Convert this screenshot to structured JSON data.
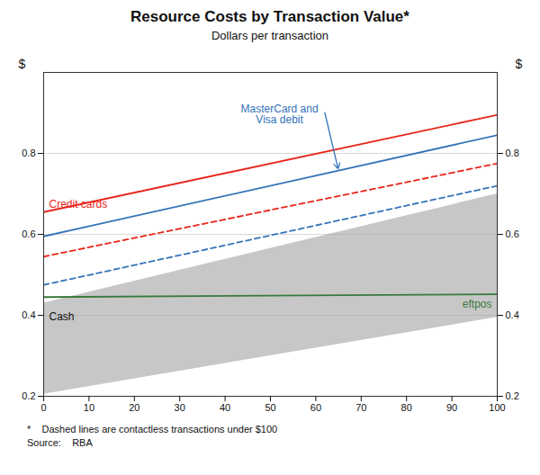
{
  "chart_data": {
    "type": "line",
    "title": "Resource Costs by Transaction Value*",
    "subtitle": "Dollars per transaction",
    "ylabel": "$",
    "y2label": "$",
    "footnote": "*    Dashed lines are contactless transactions under $100",
    "source": "Source:    RBA",
    "x": [
      0,
      100
    ],
    "xlim": [
      0,
      100
    ],
    "xticks": [
      0,
      10,
      20,
      30,
      40,
      50,
      60,
      70,
      80,
      90,
      100
    ],
    "ylim": [
      0.2,
      1.0
    ],
    "yticks": [
      0.2,
      0.4,
      0.6,
      0.8
    ],
    "y2lim": [
      0.2,
      1.0
    ],
    "y2ticks": [
      0.2,
      0.4,
      0.6,
      0.8
    ],
    "grid": true,
    "series": [
      {
        "name": "Cash",
        "type": "area",
        "color": "#999999",
        "lower": [
          0.205,
          0.395
        ],
        "upper": [
          0.43,
          0.7
        ]
      },
      {
        "name": "Credit cards",
        "color": "#e8261a",
        "line_style": "solid",
        "values": [
          0.655,
          0.895
        ]
      },
      {
        "name": "MasterCard and\nVisa debit",
        "color": "#3573b9",
        "line_style": "solid",
        "values": [
          0.595,
          0.845
        ]
      },
      {
        "name": "Credit cards",
        "color": "#e8261a",
        "line_style": "dashed",
        "values": [
          0.545,
          0.775
        ]
      },
      {
        "name": "MasterCard and\nVisa debit",
        "color": "#3573b9",
        "line_style": "dashed",
        "values": [
          0.475,
          0.72
        ]
      },
      {
        "name": "eftpos",
        "color": "#3a7a3a",
        "line_style": "solid",
        "values": [
          0.445,
          0.452
        ]
      }
    ]
  }
}
